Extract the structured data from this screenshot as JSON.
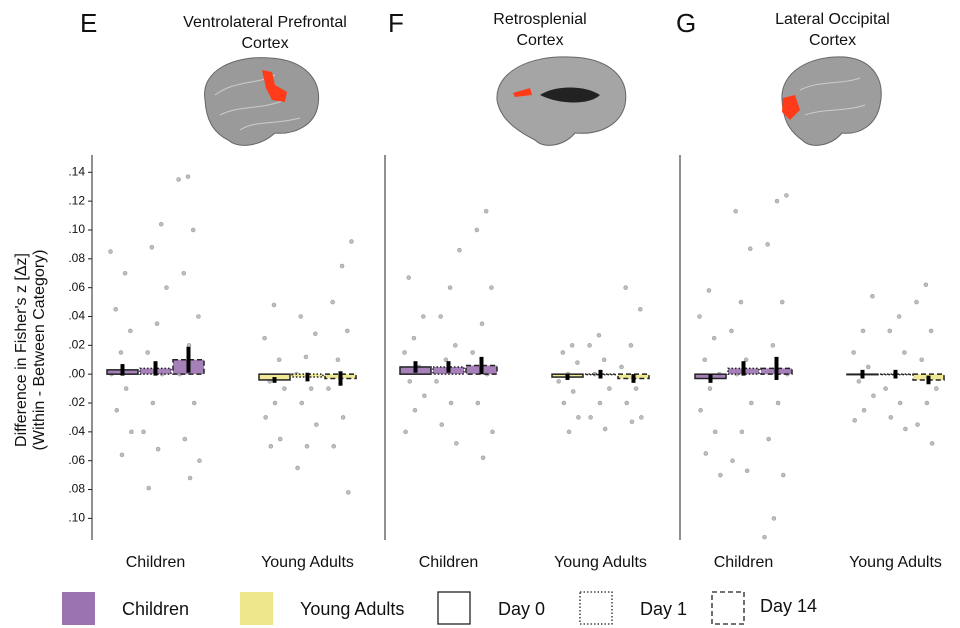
{
  "chart_data": [
    {
      "type": "bar",
      "panel": "E",
      "title": "Ventrolateral Prefrontal Cortex",
      "y_label": [
        "Difference in Fisher's z [Δz]",
        "(Within - Between Category)"
      ],
      "categories": [
        "Children",
        "Young Adults"
      ],
      "ylim": [
        -0.115,
        0.152
      ],
      "yticks": [
        {
          "value": 0.14,
          "label": ".14"
        },
        {
          "value": 0.12,
          "label": ".12"
        },
        {
          "value": 0.1,
          "label": ".10"
        },
        {
          "value": 0.08,
          "label": ".08"
        },
        {
          "value": 0.06,
          "label": ".06"
        },
        {
          "value": 0.04,
          "label": ".04"
        },
        {
          "value": 0.02,
          "label": ".02"
        },
        {
          "value": 0,
          "label": ".00"
        },
        {
          "value": -0.02,
          "label": ".02"
        },
        {
          "value": -0.04,
          "label": ".04"
        },
        {
          "value": -0.06,
          "label": ".06"
        },
        {
          "value": -0.08,
          "label": ".08"
        },
        {
          "value": -0.1,
          "label": ".10"
        }
      ],
      "series": [
        {
          "values": [
            0.003,
            -0.004
          ],
          "errors": [
            0.004,
            0.002
          ],
          "points": [
            [
              0.085,
              0.07,
              0.045,
              0.03,
              0.015,
              0.0,
              -0.01,
              -0.025,
              -0.04,
              -0.056
            ],
            [
              0.048,
              0.025,
              0.01,
              -0.005,
              -0.01,
              -0.02,
              -0.03,
              -0.045,
              -0.05
            ]
          ]
        },
        {
          "values": [
            0.004,
            -0.002
          ],
          "errors": [
            0.005,
            0.003
          ],
          "points": [
            [
              0.104,
              0.088,
              0.06,
              0.035,
              0.015,
              0.0,
              -0.02,
              -0.04,
              -0.052,
              -0.079
            ],
            [
              0.04,
              0.028,
              0.012,
              0.0,
              -0.01,
              -0.02,
              -0.035,
              -0.05,
              -0.065
            ]
          ]
        },
        {
          "values": [
            0.01,
            -0.003
          ],
          "errors": [
            0.009,
            0.005
          ],
          "points": [
            [
              0.137,
              0.135,
              0.1,
              0.07,
              0.04,
              0.02,
              0.0,
              -0.02,
              -0.045,
              -0.06,
              -0.072
            ],
            [
              0.092,
              0.075,
              0.05,
              0.03,
              0.01,
              -0.01,
              -0.03,
              -0.05,
              -0.082
            ]
          ]
        }
      ]
    },
    {
      "type": "bar",
      "panel": "F",
      "title": "Retrosplenial Cortex",
      "categories": [
        "Children",
        "Young Adults"
      ],
      "ylim": [
        -0.115,
        0.152
      ],
      "series": [
        {
          "values": [
            0.005,
            -0.002
          ],
          "errors": [
            0.004,
            0.002
          ],
          "points": [
            [
              0.067,
              0.04,
              0.025,
              0.015,
              0.005,
              -0.005,
              -0.015,
              -0.025,
              -0.04
            ],
            [
              0.02,
              0.015,
              0.008,
              0.0,
              -0.005,
              -0.012,
              -0.02,
              -0.03,
              -0.04
            ]
          ]
        },
        {
          "values": [
            0.005,
            0.0
          ],
          "errors": [
            0.004,
            0.003
          ],
          "points": [
            [
              0.086,
              0.06,
              0.04,
              0.02,
              0.01,
              -0.005,
              -0.02,
              -0.035,
              -0.048
            ],
            [
              0.027,
              0.02,
              0.01,
              0.0,
              -0.01,
              -0.02,
              -0.03,
              -0.038
            ]
          ]
        },
        {
          "values": [
            0.006,
            -0.003
          ],
          "errors": [
            0.006,
            0.003
          ],
          "points": [
            [
              0.113,
              0.1,
              0.06,
              0.035,
              0.015,
              0.0,
              -0.02,
              -0.04,
              -0.058
            ],
            [
              0.06,
              0.045,
              0.02,
              0.005,
              -0.01,
              -0.02,
              -0.03,
              -0.033
            ]
          ]
        }
      ]
    },
    {
      "type": "bar",
      "panel": "G",
      "title": "Lateral Occipital Cortex",
      "categories": [
        "Children",
        "Young Adults"
      ],
      "ylim": [
        -0.115,
        0.152
      ],
      "series": [
        {
          "values": [
            -0.003,
            0.0
          ],
          "errors": [
            0.003,
            0.003
          ],
          "points": [
            [
              0.058,
              0.04,
              0.025,
              0.01,
              0.0,
              -0.01,
              -0.025,
              -0.04,
              -0.055,
              -0.07
            ],
            [
              0.054,
              0.03,
              0.015,
              0.005,
              -0.005,
              -0.015,
              -0.025,
              -0.032
            ]
          ]
        },
        {
          "values": [
            0.004,
            0.0
          ],
          "errors": [
            0.005,
            0.003
          ],
          "points": [
            [
              0.113,
              0.087,
              0.05,
              0.03,
              0.01,
              0.0,
              -0.02,
              -0.04,
              -0.06,
              -0.067
            ],
            [
              0.04,
              0.03,
              0.015,
              0.0,
              -0.01,
              -0.02,
              -0.03,
              -0.038
            ]
          ]
        },
        {
          "values": [
            0.004,
            -0.004
          ],
          "errors": [
            0.008,
            0.003
          ],
          "points": [
            [
              0.124,
              0.12,
              0.09,
              0.05,
              0.02,
              0.0,
              -0.02,
              -0.045,
              -0.07,
              -0.1,
              -0.113
            ],
            [
              0.062,
              0.05,
              0.03,
              0.01,
              -0.01,
              -0.02,
              -0.035,
              -0.048
            ]
          ]
        }
      ]
    }
  ],
  "legend": {
    "groups": [
      {
        "name": "Children",
        "color": "#9c73b1"
      },
      {
        "name": "Young Adults",
        "color": "#ede68a"
      }
    ],
    "days": [
      {
        "name": "Day 0",
        "dash": "solid"
      },
      {
        "name": "Day 1",
        "dash": "dotted"
      },
      {
        "name": "Day 14",
        "dash": "dashed"
      }
    ]
  }
}
